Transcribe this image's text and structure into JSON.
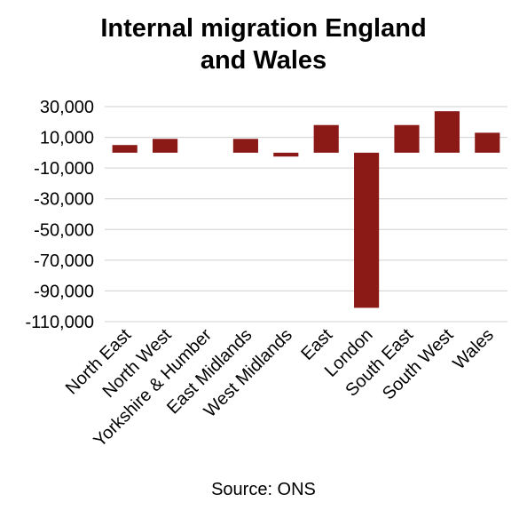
{
  "chart_data": {
    "type": "bar",
    "title_lines": [
      "Internal migration England",
      "and Wales"
    ],
    "categories": [
      "North East",
      "North West",
      "Yorkshire & Humber",
      "East Midlands",
      "West Midlands",
      "East",
      "London",
      "South East",
      "South West",
      "Wales"
    ],
    "values": [
      5000,
      9000,
      0,
      9000,
      -2500,
      18000,
      -101000,
      18000,
      27000,
      13000
    ],
    "ylim": [
      -110000,
      30000
    ],
    "yticks": [
      30000,
      10000,
      -10000,
      -30000,
      -50000,
      -70000,
      -90000,
      -110000
    ],
    "ytick_labels": [
      "30,000",
      "10,000",
      "-10,000",
      "-30,000",
      "-50,000",
      "-70,000",
      "-90,000",
      "-110,000"
    ],
    "grid": true,
    "legend": "none",
    "bar_color": "#8B1A17",
    "source": "Source: ONS"
  }
}
